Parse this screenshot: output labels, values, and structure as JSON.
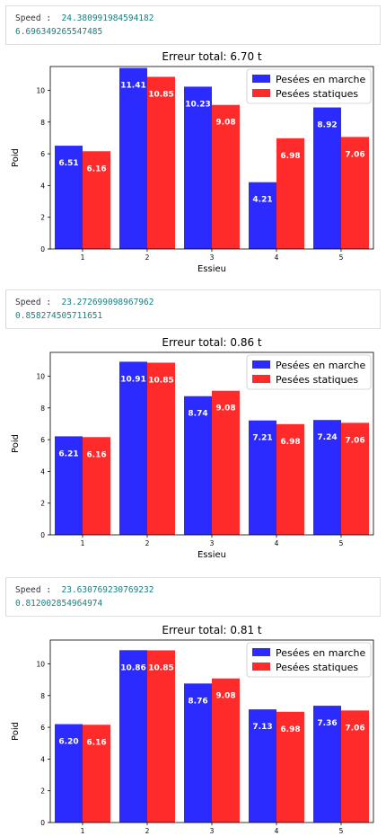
{
  "outputs": [
    {
      "label": "Speed :",
      "speed": "24.380991984594182",
      "error": "6.696349265547485"
    },
    {
      "label": "Speed :",
      "speed": "23.272699098967962",
      "error": "0.858274505711651"
    },
    {
      "label": "Speed :",
      "speed": "23.630769230769232",
      "error": "0.812002854964974"
    }
  ],
  "colors": {
    "moving": "#2b2bff",
    "static": "#ff2a2a"
  },
  "chart_data": [
    {
      "type": "bar",
      "title": "Erreur total: 6.70 t",
      "xlabel": "Essieu",
      "ylabel": "Poid",
      "categories": [
        "1",
        "2",
        "3",
        "4",
        "5"
      ],
      "ylim": [
        0,
        11.5
      ],
      "yticks": [
        "0",
        "2",
        "4",
        "6",
        "8",
        "10"
      ],
      "legend_position": "top-right",
      "series": [
        {
          "name": "Pesées en marche",
          "values": [
            6.51,
            11.41,
            10.23,
            4.21,
            8.92
          ],
          "labels": [
            "6.51",
            "11.41",
            "10.23",
            "4.21",
            "8.92"
          ]
        },
        {
          "name": "Pesées statiques",
          "values": [
            6.16,
            10.85,
            9.08,
            6.98,
            7.06
          ],
          "labels": [
            "6.16",
            "10.85",
            "9.08",
            "6.98",
            "7.06"
          ]
        }
      ]
    },
    {
      "type": "bar",
      "title": "Erreur total: 0.86 t",
      "xlabel": "Essieu",
      "ylabel": "Poid",
      "categories": [
        "1",
        "2",
        "3",
        "4",
        "5"
      ],
      "ylim": [
        0,
        11.5
      ],
      "yticks": [
        "0",
        "2",
        "4",
        "6",
        "8",
        "10"
      ],
      "legend_position": "top-right",
      "series": [
        {
          "name": "Pesées en marche",
          "values": [
            6.21,
            10.91,
            8.74,
            7.21,
            7.24
          ],
          "labels": [
            "6.21",
            "10.91",
            "8.74",
            "7.21",
            "7.24"
          ]
        },
        {
          "name": "Pesées statiques",
          "values": [
            6.16,
            10.85,
            9.08,
            6.98,
            7.06
          ],
          "labels": [
            "6.16",
            "10.85",
            "9.08",
            "6.98",
            "7.06"
          ]
        }
      ]
    },
    {
      "type": "bar",
      "title": "Erreur total: 0.81 t",
      "xlabel": "",
      "ylabel": "Poid",
      "categories": [
        "1",
        "2",
        "3",
        "4",
        "5"
      ],
      "ylim": [
        0,
        11.5
      ],
      "yticks": [
        "0",
        "2",
        "4",
        "6",
        "8",
        "10"
      ],
      "legend_position": "top-right",
      "series": [
        {
          "name": "Pesées en marche",
          "values": [
            6.2,
            10.86,
            8.76,
            7.13,
            7.36
          ],
          "labels": [
            "6.20",
            "10.86",
            "8.76",
            "7.13",
            "7.36"
          ]
        },
        {
          "name": "Pesées statiques",
          "values": [
            6.16,
            10.85,
            9.08,
            6.98,
            7.06
          ],
          "labels": [
            "6.16",
            "10.85",
            "9.08",
            "6.98",
            "7.06"
          ]
        }
      ]
    }
  ]
}
